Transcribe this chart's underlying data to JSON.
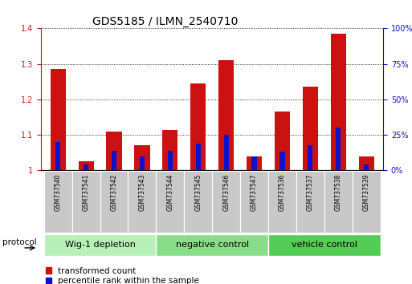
{
  "title": "GDS5185 / ILMN_2540710",
  "samples": [
    "GSM737540",
    "GSM737541",
    "GSM737542",
    "GSM737543",
    "GSM737544",
    "GSM737545",
    "GSM737546",
    "GSM737547",
    "GSM737536",
    "GSM737537",
    "GSM737538",
    "GSM737539"
  ],
  "red_values": [
    1.285,
    1.025,
    1.11,
    1.07,
    1.115,
    1.245,
    1.31,
    1.04,
    1.165,
    1.235,
    1.385,
    1.04
  ],
  "blue_pct": [
    20,
    4,
    14,
    10,
    14,
    19,
    25,
    10,
    13,
    18,
    30,
    4
  ],
  "ylim_left": [
    1.0,
    1.4
  ],
  "ylim_right": [
    0,
    100
  ],
  "yticks_left": [
    1.0,
    1.1,
    1.2,
    1.3,
    1.4
  ],
  "ytick_labels_left": [
    "1",
    "1.1",
    "1.2",
    "1.3",
    "1.4"
  ],
  "yticks_right": [
    0,
    25,
    50,
    75,
    100
  ],
  "ytick_labels_right": [
    "0%",
    "25%",
    "50%",
    "75%",
    "100%"
  ],
  "groups": [
    {
      "label": "Wig-1 depletion",
      "start": 0,
      "end": 3,
      "color": "#b8f0b8"
    },
    {
      "label": "negative control",
      "start": 4,
      "end": 7,
      "color": "#88dd88"
    },
    {
      "label": "vehicle control",
      "start": 8,
      "end": 11,
      "color": "#55cc55"
    }
  ],
  "red_color": "#cc1111",
  "blue_color": "#1111cc",
  "red_bar_width": 0.55,
  "blue_bar_width": 0.18,
  "legend_red": "transformed count",
  "legend_blue": "percentile rank within the sample",
  "grid_color": "#000000",
  "title_fontsize": 10,
  "tick_fontsize": 7,
  "legend_fontsize": 7.5,
  "group_label_fontsize": 8,
  "protocol_fontsize": 7.5,
  "xlabel_fontsize": 5.5
}
